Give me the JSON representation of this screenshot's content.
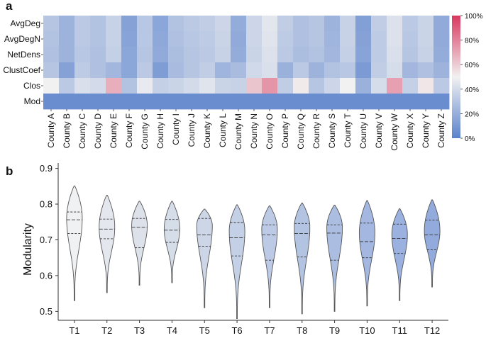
{
  "chart_data": [
    {
      "panel_label": "a",
      "type": "heatmap",
      "rows": [
        "AvgDeg",
        "AvgDegN",
        "NetDens",
        "ClustCoef",
        "Clos",
        "Mod"
      ],
      "columns": [
        "County A",
        "County B",
        "County C",
        "County D",
        "County E",
        "County F",
        "County G",
        "County H",
        "County I",
        "County J",
        "County K",
        "County L",
        "County M",
        "County N",
        "County O",
        "County P",
        "County Q",
        "County R",
        "County S",
        "County T",
        "County U",
        "County V",
        "County W",
        "County X",
        "County Y",
        "County Z"
      ],
      "values": [
        [
          0.3,
          0.22,
          0.32,
          0.29,
          0.36,
          0.14,
          0.31,
          0.16,
          0.29,
          0.32,
          0.34,
          0.38,
          0.19,
          0.38,
          0.45,
          0.34,
          0.28,
          0.3,
          0.22,
          0.36,
          0.13,
          0.34,
          0.43,
          0.32,
          0.37,
          0.18
        ],
        [
          0.29,
          0.22,
          0.32,
          0.29,
          0.36,
          0.15,
          0.31,
          0.17,
          0.28,
          0.31,
          0.33,
          0.37,
          0.18,
          0.38,
          0.44,
          0.33,
          0.28,
          0.3,
          0.23,
          0.36,
          0.14,
          0.33,
          0.43,
          0.31,
          0.37,
          0.18
        ],
        [
          0.28,
          0.22,
          0.31,
          0.28,
          0.35,
          0.16,
          0.3,
          0.18,
          0.27,
          0.3,
          0.32,
          0.36,
          0.19,
          0.37,
          0.43,
          0.32,
          0.27,
          0.29,
          0.24,
          0.35,
          0.15,
          0.33,
          0.42,
          0.3,
          0.36,
          0.19
        ],
        [
          0.3,
          0.14,
          0.33,
          0.28,
          0.24,
          0.16,
          0.32,
          0.12,
          0.26,
          0.3,
          0.34,
          0.23,
          0.26,
          0.39,
          0.42,
          0.21,
          0.32,
          0.22,
          0.29,
          0.31,
          0.11,
          0.34,
          0.41,
          0.24,
          0.28,
          0.22
        ],
        [
          0.5,
          0.32,
          0.42,
          0.4,
          0.68,
          0.29,
          0.47,
          0.35,
          0.37,
          0.4,
          0.44,
          0.37,
          0.36,
          0.62,
          0.75,
          0.34,
          0.52,
          0.3,
          0.38,
          0.5,
          0.21,
          0.41,
          0.72,
          0.35,
          0.53,
          0.32
        ],
        [
          0.05,
          0.05,
          0.05,
          0.05,
          0.05,
          0.05,
          0.05,
          0.05,
          0.05,
          0.05,
          0.05,
          0.05,
          0.05,
          0.05,
          0.05,
          0.05,
          0.05,
          0.05,
          0.05,
          0.05,
          0.05,
          0.05,
          0.05,
          0.05,
          0.05,
          0.05
        ]
      ],
      "colorbar": {
        "ticks": [
          "100%",
          "80%",
          "60%",
          "40%",
          "20%",
          "0%"
        ],
        "low_color": "#5b82cc",
        "mid_color": "#f1f1f1",
        "high_color": "#d9385f"
      }
    },
    {
      "panel_label": "b",
      "type": "violin",
      "ylabel": "Modularity",
      "ylim": [
        0.475,
        0.915
      ],
      "yticks": [
        0.5,
        0.6,
        0.7,
        0.8,
        0.9
      ],
      "categories": [
        "T1",
        "T2",
        "T3",
        "T4",
        "T5",
        "T6",
        "T7",
        "T8",
        "T9",
        "T10",
        "T11",
        "T12"
      ],
      "fill_colors": [
        "#f0f1f3",
        "#e4e8ee",
        "#dde2ea",
        "#d5dde8",
        "#ccd6e7",
        "#c4d0e6",
        "#bccae5",
        "#b3c4e3",
        "#abbee2",
        "#a3b7e1",
        "#9bb1df",
        "#93abdc"
      ],
      "series": [
        {
          "min": 0.53,
          "q1": 0.718,
          "median": 0.756,
          "q3": 0.778,
          "max": 0.851,
          "peak": 0.76
        },
        {
          "min": 0.552,
          "q1": 0.703,
          "median": 0.73,
          "q3": 0.758,
          "max": 0.825,
          "peak": 0.735
        },
        {
          "min": 0.573,
          "q1": 0.678,
          "median": 0.735,
          "q3": 0.76,
          "max": 0.808,
          "peak": 0.74
        },
        {
          "min": 0.58,
          "q1": 0.693,
          "median": 0.727,
          "q3": 0.757,
          "max": 0.808,
          "peak": 0.73
        },
        {
          "min": 0.51,
          "q1": 0.682,
          "median": 0.714,
          "q3": 0.76,
          "max": 0.786,
          "peak": 0.74
        },
        {
          "min": 0.48,
          "q1": 0.655,
          "median": 0.706,
          "q3": 0.748,
          "max": 0.798,
          "peak": 0.725
        },
        {
          "min": 0.51,
          "q1": 0.643,
          "median": 0.714,
          "q3": 0.742,
          "max": 0.795,
          "peak": 0.73
        },
        {
          "min": 0.493,
          "q1": 0.652,
          "median": 0.718,
          "q3": 0.746,
          "max": 0.803,
          "peak": 0.735
        },
        {
          "min": 0.5,
          "q1": 0.643,
          "median": 0.719,
          "q3": 0.742,
          "max": 0.797,
          "peak": 0.735
        },
        {
          "min": 0.515,
          "q1": 0.65,
          "median": 0.695,
          "q3": 0.747,
          "max": 0.81,
          "peak": 0.72
        },
        {
          "min": 0.53,
          "q1": 0.662,
          "median": 0.704,
          "q3": 0.744,
          "max": 0.787,
          "peak": 0.715
        },
        {
          "min": 0.568,
          "q1": 0.672,
          "median": 0.714,
          "q3": 0.755,
          "max": 0.812,
          "peak": 0.725
        }
      ]
    }
  ]
}
